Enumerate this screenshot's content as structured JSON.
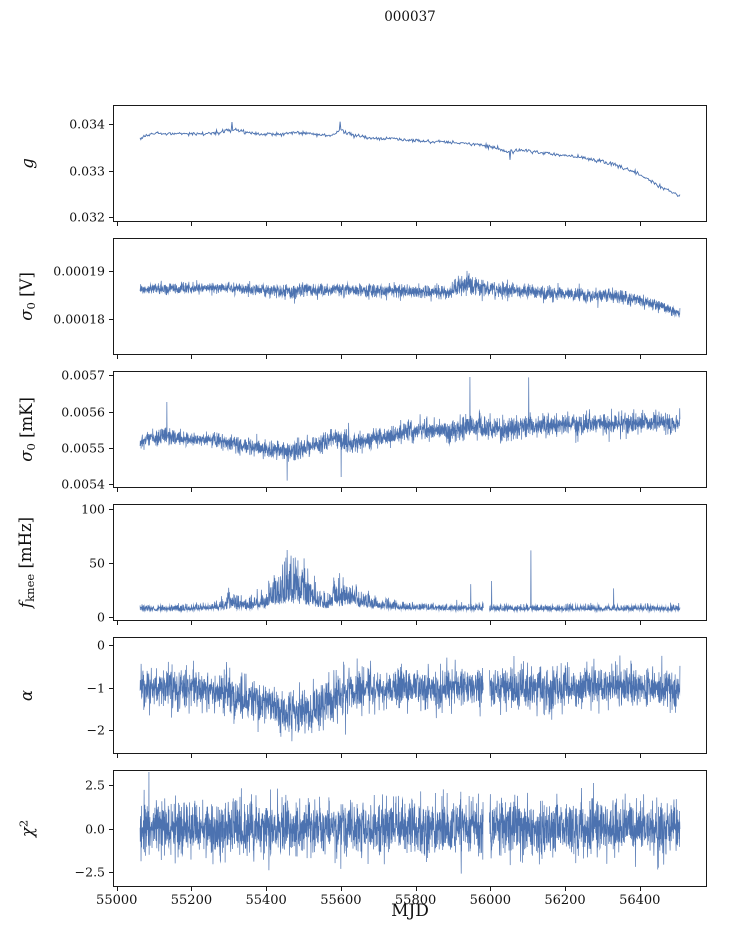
{
  "chart_data": {
    "type": "line",
    "title": "000037",
    "xlabel": "MJD",
    "color": "#4c72b0",
    "background": "#ffffff",
    "legend": "none",
    "grid": false,
    "x_axis": {
      "lim": [
        54990,
        56580
      ],
      "ticks": [
        {
          "v": 55000,
          "label": "55000"
        },
        {
          "v": 55200,
          "label": "55200"
        },
        {
          "v": 55400,
          "label": "55400"
        },
        {
          "v": 55600,
          "label": "55600"
        },
        {
          "v": 55800,
          "label": "55800"
        },
        {
          "v": 56000,
          "label": "56000"
        },
        {
          "v": 56200,
          "label": "56200"
        },
        {
          "v": 56400,
          "label": "56400"
        }
      ]
    },
    "panels": [
      {
        "id": "g",
        "ylabel_text": "g",
        "ylabel_parts": [
          [
            "i",
            "g"
          ]
        ],
        "ylim": [
          0.0319,
          0.0344
        ],
        "yticks": [
          {
            "v": 0.034,
            "label": "0.034"
          },
          {
            "v": 0.033,
            "label": "0.033"
          },
          {
            "v": 0.032,
            "label": "0.032"
          }
        ],
        "seed": 7,
        "line_width": 0.9,
        "series": {
          "x_range": [
            55060,
            56510
          ],
          "samples": 700,
          "noise_model": "gauss",
          "keypoints": [
            [
              55060,
              0.0337,
              1.5e-05
            ],
            [
              55090,
              0.0338,
              1.8e-05
            ],
            [
              55160,
              0.0338,
              1.8e-05
            ],
            [
              55230,
              0.03378,
              1.8e-05
            ],
            [
              55290,
              0.03386,
              2.4e-05
            ],
            [
              55320,
              0.03388,
              2.4e-05
            ],
            [
              55360,
              0.0338,
              2e-05
            ],
            [
              55430,
              0.03378,
              1.8e-05
            ],
            [
              55480,
              0.03383,
              2.2e-05
            ],
            [
              55530,
              0.03379,
              1.8e-05
            ],
            [
              55570,
              0.03375,
              1.8e-05
            ],
            [
              55600,
              0.03387,
              2.6e-05
            ],
            [
              55630,
              0.03377,
              2e-05
            ],
            [
              55670,
              0.03371,
              2e-05
            ],
            [
              55730,
              0.03368,
              2e-05
            ],
            [
              55790,
              0.03365,
              2e-05
            ],
            [
              55850,
              0.03363,
              2e-05
            ],
            [
              55910,
              0.0336,
              2e-05
            ],
            [
              55960,
              0.03356,
              2e-05
            ],
            [
              56010,
              0.0335,
              2.2e-05
            ],
            [
              56050,
              0.03341,
              2.6e-05
            ],
            [
              56090,
              0.03343,
              2e-05
            ],
            [
              56150,
              0.03338,
              2e-05
            ],
            [
              56210,
              0.03331,
              2e-05
            ],
            [
              56270,
              0.03325,
              2e-05
            ],
            [
              56330,
              0.03314,
              2e-05
            ],
            [
              56390,
              0.03296,
              2e-05
            ],
            [
              56450,
              0.03268,
              1.8e-05
            ],
            [
              56510,
              0.03244,
              1.5e-05
            ]
          ],
          "spikes": [
            [
              55307,
              0.03405
            ],
            [
              55598,
              0.03406
            ],
            [
              56053,
              0.03323
            ]
          ],
          "gaps": []
        }
      },
      {
        "id": "sigma0_V",
        "ylabel_text": "sigma_0 [V]",
        "ylabel_parts": [
          [
            "i",
            "σ"
          ],
          [
            "sub",
            "0"
          ],
          [
            "n",
            " [V]"
          ]
        ],
        "ylim": [
          0.0001725,
          0.000197
        ],
        "yticks": [
          {
            "v": 0.00019,
            "label": "0.00019"
          },
          {
            "v": 0.00018,
            "label": "0.00018"
          }
        ],
        "seed": 101,
        "line_width": 0.7,
        "series": {
          "x_range": [
            55060,
            56510
          ],
          "samples": 2600,
          "noise_model": "gauss",
          "keypoints": [
            [
              55060,
              0.0001862,
              5.5e-07
            ],
            [
              55160,
              0.0001865,
              5.5e-07
            ],
            [
              55260,
              0.0001866,
              5.5e-07
            ],
            [
              55360,
              0.0001864,
              6e-07
            ],
            [
              55430,
              0.0001859,
              8e-07
            ],
            [
              55510,
              0.0001861,
              7e-07
            ],
            [
              55610,
              0.0001862,
              7e-07
            ],
            [
              55710,
              0.000186,
              7e-07
            ],
            [
              55810,
              0.0001857,
              7e-07
            ],
            [
              55890,
              0.0001856,
              7e-07
            ],
            [
              55925,
              0.0001871,
              1.1e-06
            ],
            [
              55948,
              0.0001875,
              1.1e-06
            ],
            [
              55975,
              0.0001866,
              9e-07
            ],
            [
              56030,
              0.0001861,
              8e-07
            ],
            [
              56110,
              0.0001858,
              8e-07
            ],
            [
              56190,
              0.0001855,
              7.5e-07
            ],
            [
              56270,
              0.0001851,
              7.5e-07
            ],
            [
              56340,
              0.0001847,
              7e-07
            ],
            [
              56400,
              0.000184,
              7e-07
            ],
            [
              56450,
              0.0001828,
              6.5e-07
            ],
            [
              56490,
              0.0001817,
              6e-07
            ],
            [
              56510,
              0.0001813,
              6e-07
            ]
          ],
          "spikes": [
            [
              55938,
              0.0001902
            ],
            [
              55944,
              0.0001897
            ]
          ],
          "gaps": []
        }
      },
      {
        "id": "sigma0_mK",
        "ylabel_text": "sigma_0 [mK]",
        "ylabel_parts": [
          [
            "i",
            "σ"
          ],
          [
            "sub",
            "0"
          ],
          [
            "n",
            " [mK]"
          ]
        ],
        "ylim": [
          0.00539,
          0.005712
        ],
        "yticks": [
          {
            "v": 0.0057,
            "label": "0.0057"
          },
          {
            "v": 0.0056,
            "label": "0.0056"
          },
          {
            "v": 0.0055,
            "label": "0.0055"
          },
          {
            "v": 0.0054,
            "label": "0.0054"
          }
        ],
        "seed": 202,
        "line_width": 0.7,
        "series": {
          "x_range": [
            55060,
            56510
          ],
          "samples": 2600,
          "noise_model": "gauss",
          "keypoints": [
            [
              55060,
              0.00552,
              1e-05
            ],
            [
              55130,
              0.005533,
              1.2e-05
            ],
            [
              55180,
              0.005524,
              1e-05
            ],
            [
              55260,
              0.00552,
              1e-05
            ],
            [
              55330,
              0.005507,
              1.2e-05
            ],
            [
              55410,
              0.005497,
              1.2e-05
            ],
            [
              55470,
              0.005492,
              1.4e-05
            ],
            [
              55530,
              0.005507,
              1.2e-05
            ],
            [
              55585,
              0.005528,
              1.5e-05
            ],
            [
              55625,
              0.005512,
              1.7e-05
            ],
            [
              55670,
              0.005522,
              1.4e-05
            ],
            [
              55730,
              0.005536,
              1.4e-05
            ],
            [
              55790,
              0.005546,
              1.4e-05
            ],
            [
              55850,
              0.005551,
              1.4e-05
            ],
            [
              55910,
              0.005549,
              1.5e-05
            ],
            [
              55950,
              0.005564,
              1.8e-05
            ],
            [
              55990,
              0.005556,
              1.5e-05
            ],
            [
              56040,
              0.005549,
              1.5e-05
            ],
            [
              56090,
              0.005564,
              1.6e-05
            ],
            [
              56140,
              0.005559,
              1.5e-05
            ],
            [
              56210,
              0.005564,
              1.5e-05
            ],
            [
              56290,
              0.005567,
              1.5e-05
            ],
            [
              56370,
              0.005567,
              1.5e-05
            ],
            [
              56440,
              0.005572,
              1.5e-05
            ],
            [
              56510,
              0.00557,
              1.4e-05
            ]
          ],
          "spikes": [
            [
              55132,
              0.005628
            ],
            [
              55455,
              0.005408
            ],
            [
              55600,
              0.005418
            ],
            [
              55946,
              0.005698
            ],
            [
              56104,
              0.005697
            ]
          ],
          "gaps": []
        }
      },
      {
        "id": "f_knee",
        "ylabel_text": "f_knee [mHz]",
        "ylabel_parts": [
          [
            "i",
            "f"
          ],
          [
            "sub",
            "knee"
          ],
          [
            "n",
            " [mHz]"
          ]
        ],
        "ylim": [
          -4,
          105
        ],
        "yticks": [
          {
            "v": 100,
            "label": "100"
          },
          {
            "v": 50,
            "label": "50"
          },
          {
            "v": 0,
            "label": "0"
          }
        ],
        "seed": 303,
        "line_width": 0.7,
        "series": {
          "x_range": [
            55060,
            56510
          ],
          "samples": 2200,
          "noise_model": "positive",
          "keypoints": [
            [
              55060,
              5,
              2.2
            ],
            [
              55200,
              5,
              2.6
            ],
            [
              55260,
              6,
              3.5
            ],
            [
              55300,
              6,
              8
            ],
            [
              55345,
              6,
              4.5
            ],
            [
              55395,
              7,
              9
            ],
            [
              55430,
              10,
              20
            ],
            [
              55465,
              12,
              23
            ],
            [
              55500,
              10,
              19
            ],
            [
              55530,
              8,
              11
            ],
            [
              55560,
              7,
              7
            ],
            [
              55585,
              9,
              13
            ],
            [
              55620,
              9,
              12
            ],
            [
              55655,
              8,
              8
            ],
            [
              55695,
              7,
              5
            ],
            [
              55755,
              6,
              3.5
            ],
            [
              55830,
              6,
              3
            ],
            [
              55900,
              5,
              2.6
            ],
            [
              56510,
              5,
              2.6
            ]
          ],
          "spikes": [
            [
              55948,
              30
            ],
            [
              56004,
              33
            ],
            [
              56110,
              62
            ],
            [
              56332,
              26
            ]
          ],
          "gaps": [
            [
              55982,
              55998
            ]
          ]
        }
      },
      {
        "id": "alpha",
        "ylabel_text": "alpha",
        "ylabel_parts": [
          [
            "i",
            "α"
          ]
        ],
        "ylim": [
          -2.56,
          0.19
        ],
        "yticks": [
          {
            "v": 0,
            "label": "0"
          },
          {
            "v": -1,
            "label": "−1"
          },
          {
            "v": -2,
            "label": "−2"
          }
        ],
        "seed": 404,
        "line_width": 0.7,
        "series": {
          "x_range": [
            55060,
            56510
          ],
          "samples": 2600,
          "noise_model": "gauss",
          "keypoints": [
            [
              55060,
              -1.0,
              0.24
            ],
            [
              55200,
              -1.03,
              0.24
            ],
            [
              55280,
              -1.08,
              0.26
            ],
            [
              55340,
              -1.28,
              0.27
            ],
            [
              55400,
              -1.35,
              0.26
            ],
            [
              55440,
              -1.55,
              0.26
            ],
            [
              55490,
              -1.6,
              0.26
            ],
            [
              55530,
              -1.5,
              0.26
            ],
            [
              55570,
              -1.3,
              0.28
            ],
            [
              55610,
              -1.12,
              0.28
            ],
            [
              55660,
              -1.03,
              0.26
            ],
            [
              55730,
              -1.0,
              0.25
            ],
            [
              56510,
              -1.0,
              0.25
            ]
          ],
          "spikes": [
            [
              55468,
              -2.28
            ],
            [
              55612,
              -2.12
            ]
          ],
          "gaps": [
            [
              55982,
              55998
            ]
          ]
        }
      },
      {
        "id": "chi2",
        "ylabel_text": "chi^2",
        "ylabel_parts": [
          [
            "i",
            "χ"
          ],
          [
            "sup",
            "2"
          ]
        ],
        "ylim": [
          -3.4,
          3.4
        ],
        "yticks": [
          {
            "v": 2.5,
            "label": "2.5"
          },
          {
            "v": 0.0,
            "label": "0.0"
          },
          {
            "v": -2.5,
            "label": "−2.5"
          }
        ],
        "seed": 505,
        "line_width": 0.7,
        "series": {
          "x_range": [
            55060,
            56510
          ],
          "samples": 2800,
          "noise_model": "gauss",
          "keypoints": [
            [
              55060,
              0,
              0.82
            ],
            [
              56510,
              0,
              0.82
            ]
          ],
          "spikes": [],
          "gaps": [
            [
              55982,
              55998
            ]
          ]
        }
      }
    ]
  }
}
